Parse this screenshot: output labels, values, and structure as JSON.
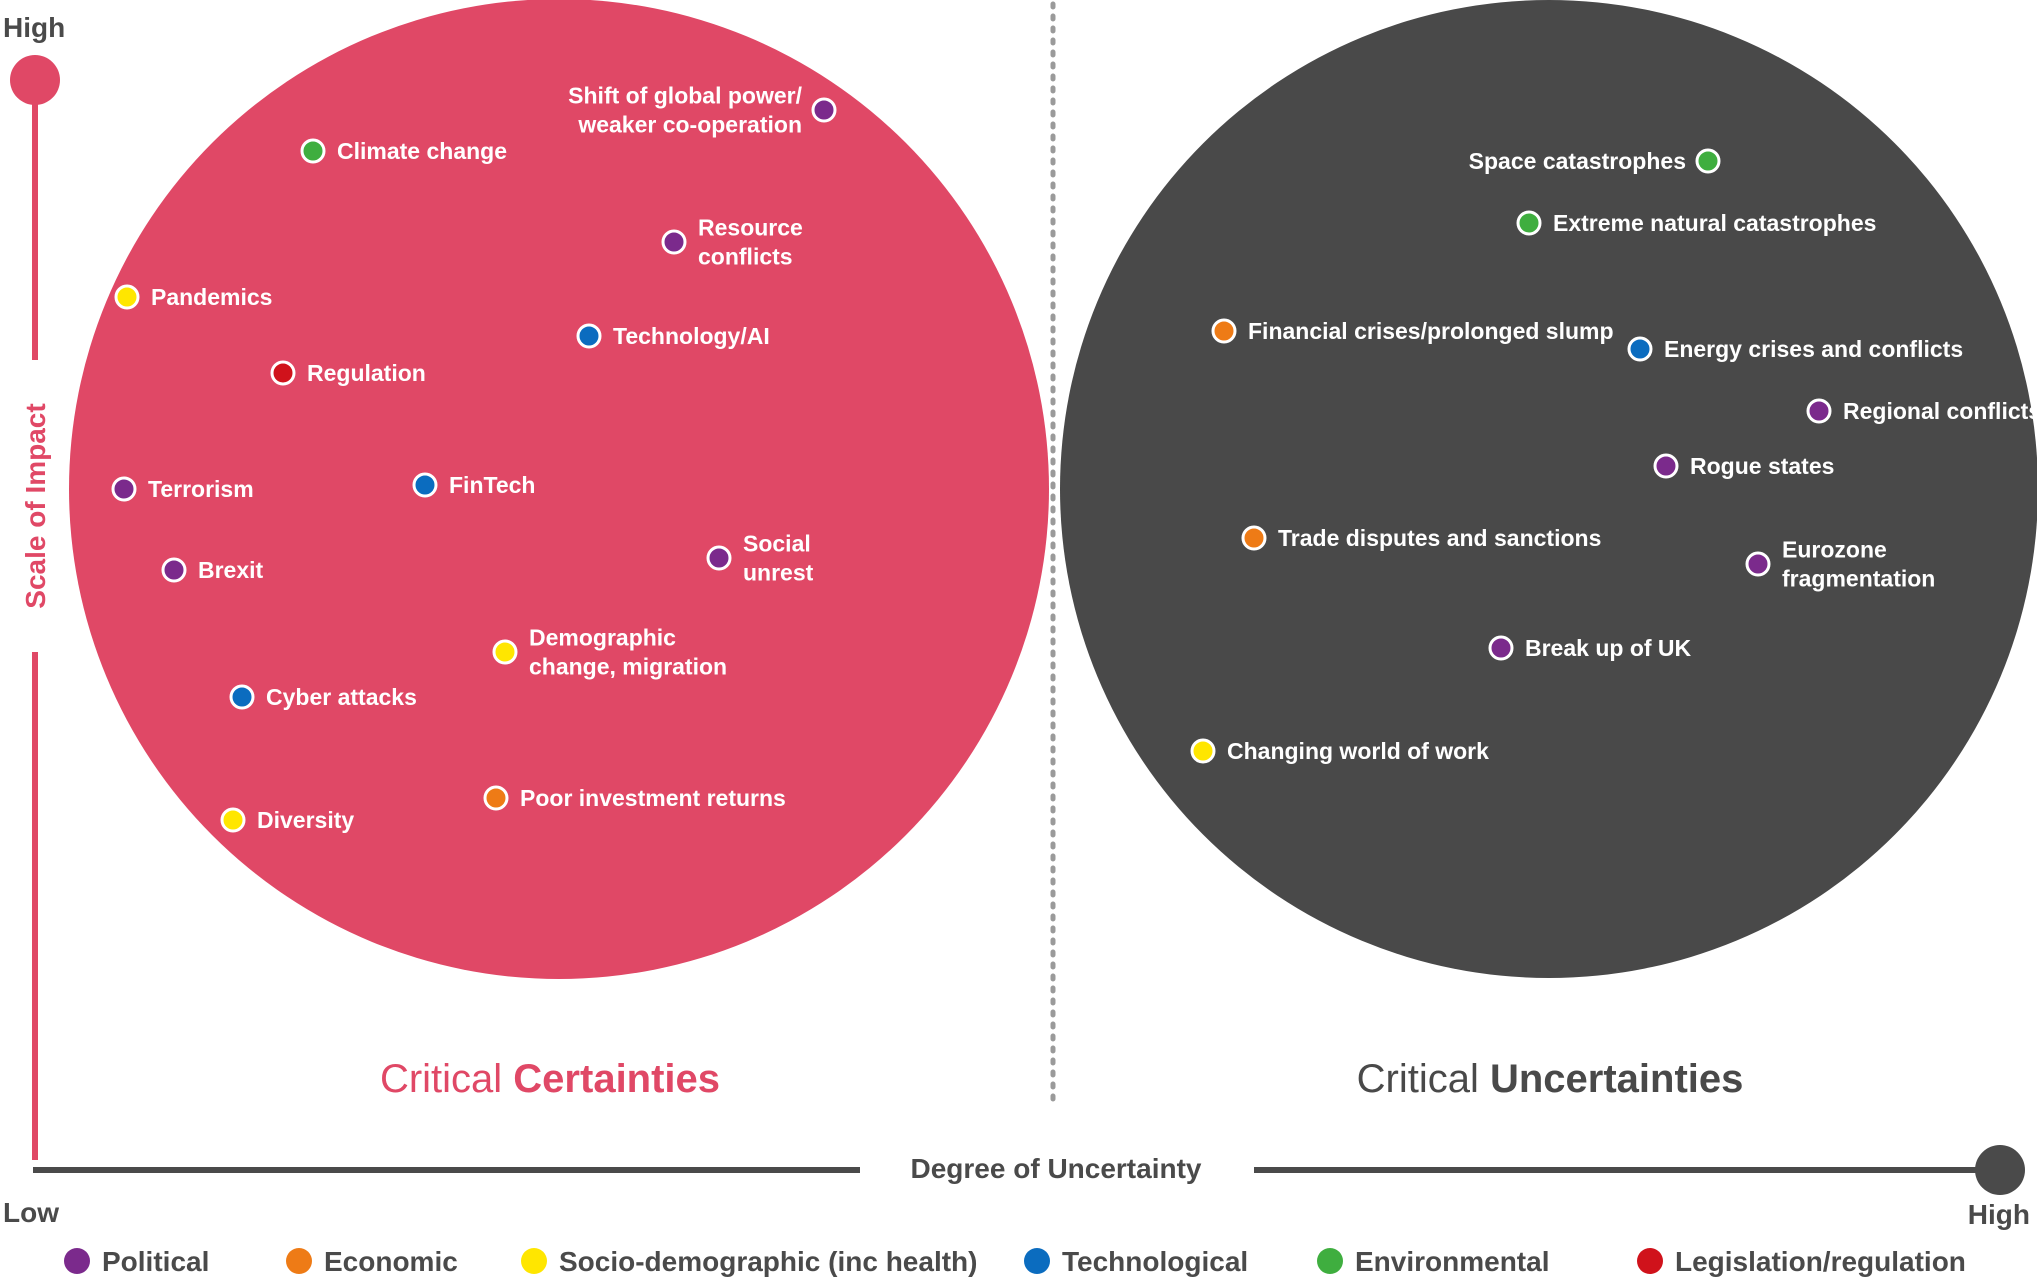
{
  "axes": {
    "y_high": "High",
    "y_title": "Scale of Impact",
    "x_low": "Low",
    "x_title": "Degree of Uncertainty",
    "x_high": "High"
  },
  "colors": {
    "certainties": "#e04866",
    "uncertainties": "#494949",
    "axis_gray": "#4a4a4a"
  },
  "categories": [
    {
      "key": "political",
      "label": "Political",
      "color": "#7b2a8c"
    },
    {
      "key": "economic",
      "label": "Economic",
      "color": "#ee7b16"
    },
    {
      "key": "socio",
      "label": "Socio-demographic (inc health)",
      "color": "#ffe600"
    },
    {
      "key": "technological",
      "label": "Technological",
      "color": "#0b6cbf"
    },
    {
      "key": "environmental",
      "label": "Environmental",
      "color": "#3fae3f"
    },
    {
      "key": "legislation",
      "label": "Legislation/regulation",
      "color": "#d0121b"
    }
  ],
  "groups": [
    {
      "title_prefix": "Critical ",
      "title_emphasis": "Certainties",
      "items": [
        {
          "lines": [
            "Shift of global power/",
            "weaker co-operation"
          ],
          "category": "political"
        },
        {
          "lines": [
            "Climate change"
          ],
          "category": "environmental"
        },
        {
          "lines": [
            "Resource",
            "conflicts"
          ],
          "category": "political"
        },
        {
          "lines": [
            "Pandemics"
          ],
          "category": "socio"
        },
        {
          "lines": [
            "Technology/AI"
          ],
          "category": "technological"
        },
        {
          "lines": [
            "Regulation"
          ],
          "category": "legislation"
        },
        {
          "lines": [
            "Terrorism"
          ],
          "category": "political"
        },
        {
          "lines": [
            "FinTech"
          ],
          "category": "technological"
        },
        {
          "lines": [
            "Brexit"
          ],
          "category": "political"
        },
        {
          "lines": [
            "Social",
            "unrest"
          ],
          "category": "political"
        },
        {
          "lines": [
            "Demographic",
            "change, migration"
          ],
          "category": "socio"
        },
        {
          "lines": [
            "Cyber attacks"
          ],
          "category": "technological"
        },
        {
          "lines": [
            "Poor investment returns"
          ],
          "category": "economic"
        },
        {
          "lines": [
            "Diversity"
          ],
          "category": "socio"
        }
      ]
    },
    {
      "title_prefix": "Critical ",
      "title_emphasis": "Uncertainties",
      "items": [
        {
          "lines": [
            "Space catastrophes"
          ],
          "category": "environmental"
        },
        {
          "lines": [
            "Extreme natural catastrophes"
          ],
          "category": "environmental"
        },
        {
          "lines": [
            "Financial crises/prolonged slump"
          ],
          "category": "economic"
        },
        {
          "lines": [
            "Energy crises and conflicts"
          ],
          "category": "technological"
        },
        {
          "lines": [
            "Regional conflicts"
          ],
          "category": "political"
        },
        {
          "lines": [
            "Rogue states"
          ],
          "category": "political"
        },
        {
          "lines": [
            "Trade disputes and sanctions"
          ],
          "category": "economic"
        },
        {
          "lines": [
            "Eurozone",
            "fragmentation"
          ],
          "category": "political"
        },
        {
          "lines": [
            "Break up of UK"
          ],
          "category": "political"
        },
        {
          "lines": [
            "Changing world of work"
          ],
          "category": "socio"
        }
      ]
    }
  ]
}
